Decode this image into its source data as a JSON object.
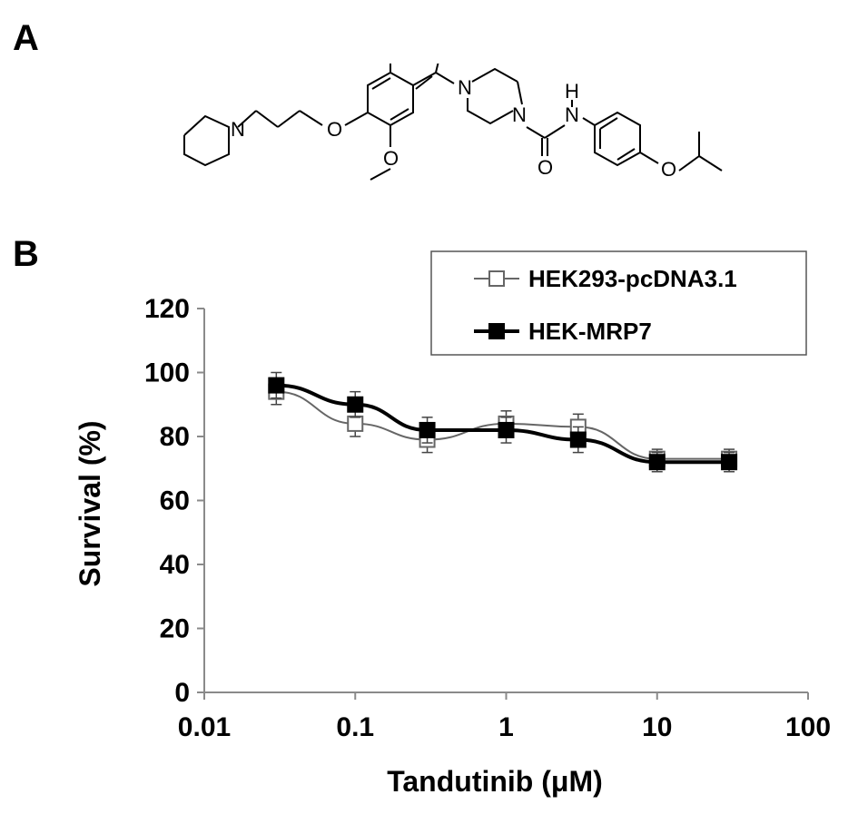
{
  "panels": {
    "a_label": "A",
    "b_label": "B"
  },
  "structure": {
    "atoms": {
      "n": "N",
      "o": "O",
      "h": "H"
    }
  },
  "chart_data": {
    "type": "line",
    "xlabel": "Tandutinib (μM)",
    "ylabel": "Survival (%)",
    "xscale": "log",
    "xlim": [
      0.01,
      100
    ],
    "ylim": [
      0,
      120
    ],
    "xticks": [
      0.01,
      0.1,
      1,
      10,
      100
    ],
    "xtick_labels": [
      "0.01",
      "0.1",
      "1",
      "10",
      "100"
    ],
    "yticks": [
      0,
      20,
      40,
      60,
      80,
      100,
      120
    ],
    "ytick_labels": [
      "0",
      "20",
      "40",
      "60",
      "80",
      "100",
      "120"
    ],
    "grid": false,
    "legend_position": "top-right",
    "x": [
      0.03,
      0.1,
      0.3,
      1,
      3,
      10,
      30
    ],
    "series": [
      {
        "name": "HEK293-pcDNA3.1",
        "marker": "open-square",
        "color": "#666666",
        "values": [
          94,
          84,
          79,
          84,
          83,
          73,
          73
        ],
        "error": [
          4,
          4,
          4,
          4,
          4,
          3,
          3
        ]
      },
      {
        "name": "HEK-MRP7",
        "marker": "filled-square",
        "color": "#000000",
        "values": [
          96,
          90,
          82,
          82,
          79,
          72,
          72
        ],
        "error": [
          4,
          4,
          4,
          4,
          4,
          3,
          3
        ]
      }
    ]
  }
}
